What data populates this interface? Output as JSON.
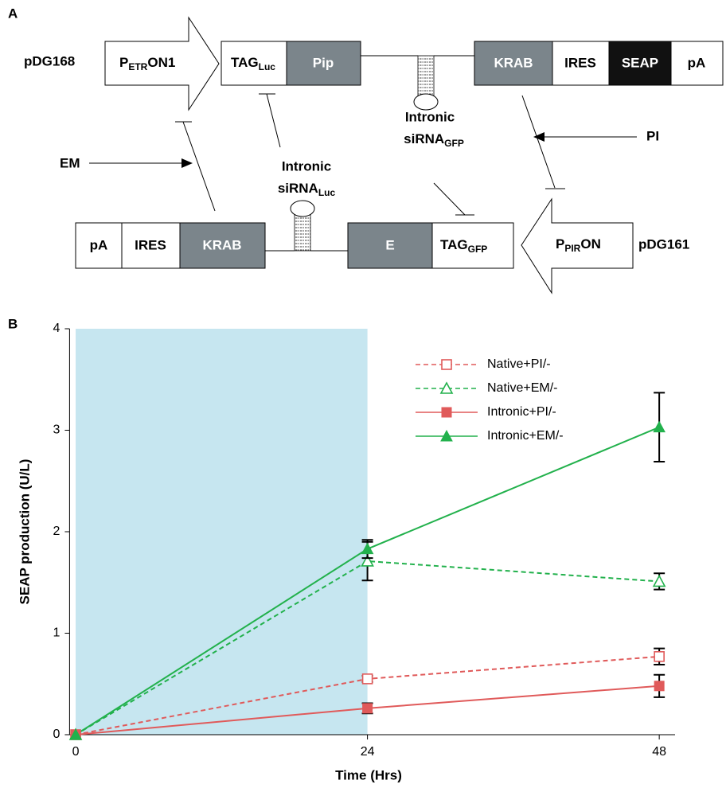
{
  "panels": [
    "A",
    "B"
  ],
  "diagram": {
    "plasmid1": "pDG168",
    "plasmid2": "pDG161",
    "promoter1": [
      "P",
      "ETR",
      "ON1"
    ],
    "promoter2": [
      "P",
      "PIR",
      "ON"
    ],
    "top_boxes": [
      [
        "TAG",
        "Luc"
      ],
      [
        "Pip"
      ],
      [
        "KRAB"
      ],
      [
        "IRES"
      ],
      [
        "SEAP"
      ],
      [
        "pA"
      ]
    ],
    "bottom_boxes": [
      [
        "pA"
      ],
      [
        "IRES"
      ],
      [
        "KRAB"
      ],
      [
        "E"
      ],
      [
        "TAG",
        "GFP"
      ]
    ],
    "inducer1": "EM",
    "inducer2": "PI",
    "sirna1": [
      "Intronic",
      "siRNA",
      "Luc"
    ],
    "sirna2": [
      "Intronic",
      "siRNA",
      "GFP"
    ]
  },
  "chart_data": {
    "type": "line",
    "x_label": "Time (Hrs)",
    "y_label": "SEAP production (U/L)",
    "x": [
      0,
      24,
      48
    ],
    "xlim": [
      -0.5,
      49.3
    ],
    "xticks": [
      0,
      24,
      48
    ],
    "ylim": [
      0,
      4
    ],
    "yticks": [
      0,
      1,
      2,
      3,
      4
    ],
    "shade": [
      0,
      24
    ],
    "shade_color": "#c6e6f0",
    "legend": "top-right",
    "series": [
      {
        "name": "Native+PI/-",
        "color": "#e05a5a",
        "dashed": true,
        "marker": "square",
        "filled": false,
        "values": [
          0,
          0.55,
          0.77
        ],
        "errors": [
          null,
          0.03,
          0.08
        ]
      },
      {
        "name": "Native+EM/-",
        "color": "#22b14c",
        "dashed": true,
        "marker": "triangle",
        "filled": false,
        "values": [
          0,
          1.71,
          1.51
        ],
        "errors": [
          null,
          0.19,
          0.08
        ]
      },
      {
        "name": "Intronic+PI/-",
        "color": "#e05a5a",
        "dashed": false,
        "marker": "square",
        "filled": true,
        "values": [
          0,
          0.26,
          0.48
        ],
        "errors": [
          null,
          0.05,
          0.11
        ]
      },
      {
        "name": "Intronic+EM/-",
        "color": "#22b14c",
        "dashed": false,
        "marker": "triangle",
        "filled": true,
        "values": [
          0,
          1.83,
          3.03
        ],
        "errors": [
          null,
          0.09,
          0.34
        ]
      }
    ]
  }
}
